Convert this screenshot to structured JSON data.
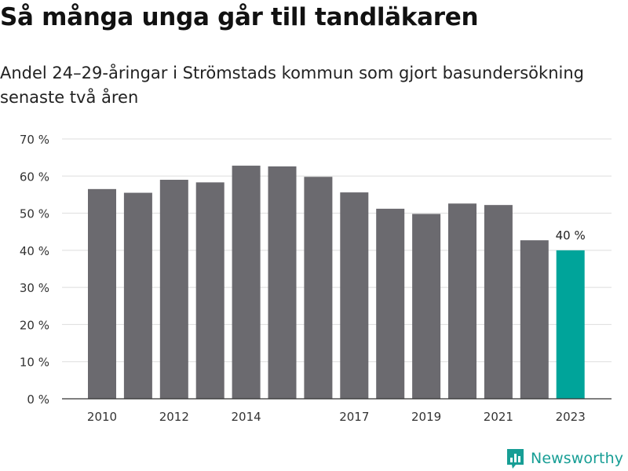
{
  "header": {
    "title": "Så många unga går till tandläkaren",
    "subtitle": "Andel 24–29-åringar i Strömstads kommun som gjort basundersökning senaste två åren"
  },
  "brand": {
    "name": "Newsworthy",
    "icon": "newsworthy-logo-icon",
    "color": "#179e95"
  },
  "colors": {
    "bar": "#6b6a6f",
    "highlight": "#00a49a",
    "grid": "#dddddd"
  },
  "chart_data": {
    "type": "bar",
    "title": "Så många unga går till tandläkaren",
    "subtitle": "Andel 24–29-åringar i Strömstads kommun som gjort basundersökning senaste två åren",
    "categories": [
      "2010",
      "2011",
      "2012",
      "2013",
      "2014",
      "2015",
      "2016",
      "2017",
      "2018",
      "2019",
      "2020",
      "2021",
      "2022",
      "2023"
    ],
    "values": [
      56.5,
      55.5,
      59,
      58.3,
      62.8,
      62.6,
      59.8,
      55.6,
      51.2,
      49.8,
      52.6,
      52.2,
      42.7,
      40
    ],
    "x_tick_labels": [
      "2010",
      "2012",
      "2014",
      "2017",
      "2019",
      "2021",
      "2023"
    ],
    "y_ticks": [
      "0 %",
      "10 %",
      "20 %",
      "30 %",
      "40 %",
      "50 %",
      "60 %",
      "70 %"
    ],
    "ylim": [
      0,
      70
    ],
    "highlight_index": 13,
    "annotation": "40 %",
    "grid": true,
    "legend": "none"
  }
}
